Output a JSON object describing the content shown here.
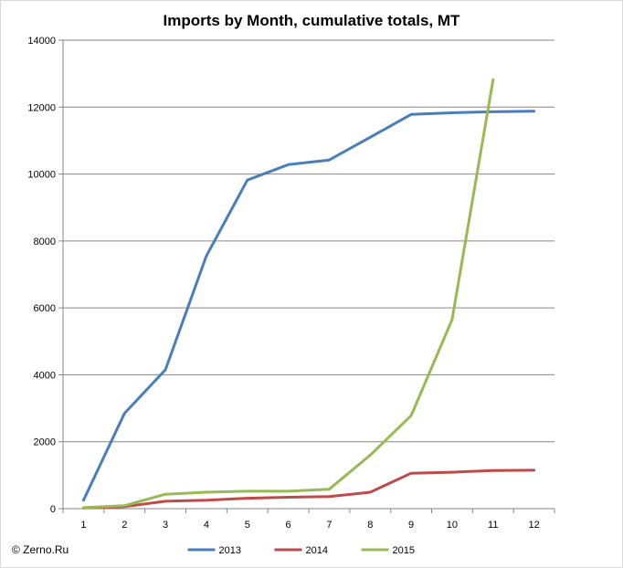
{
  "chart_data": {
    "type": "line",
    "title": "Imports by Month, cumulative totals, MT",
    "xlabel": "",
    "ylabel": "",
    "x": [
      1,
      2,
      3,
      4,
      5,
      6,
      7,
      8,
      9,
      10,
      11,
      12
    ],
    "xlim": [
      0.5,
      12.5
    ],
    "ylim": [
      0,
      14000
    ],
    "y_ticks": [
      0,
      2000,
      4000,
      6000,
      8000,
      10000,
      12000,
      14000
    ],
    "grid": true,
    "legend_position": "bottom",
    "series": [
      {
        "name": "2013",
        "color": "#4a7ebb",
        "values": [
          250,
          2850,
          4150,
          7550,
          9820,
          10280,
          10420,
          11100,
          11780,
          11830,
          11860,
          11880
        ]
      },
      {
        "name": "2014",
        "color": "#be4b48",
        "values": [
          20,
          60,
          220,
          250,
          310,
          340,
          360,
          490,
          1060,
          1090,
          1140,
          1150
        ]
      },
      {
        "name": "2015",
        "color": "#98b954",
        "values": [
          30,
          90,
          430,
          490,
          520,
          520,
          580,
          1600,
          2780,
          5650,
          12820,
          null
        ]
      }
    ]
  },
  "credit": "© Zerno.Ru"
}
